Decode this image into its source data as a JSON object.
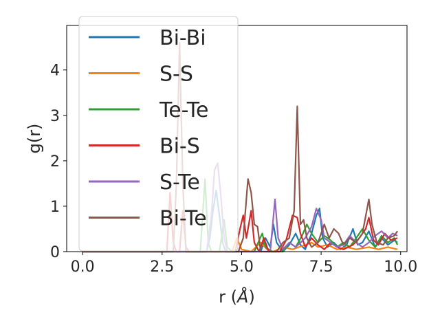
{
  "chart_data": {
    "type": "line",
    "xlabel": "r (",
    "xlabel_unit": "Å",
    "xlabel_close": ")",
    "ylabel": "g(r)",
    "xlim": [
      -0.5,
      10.2
    ],
    "ylim": [
      0,
      4.98
    ],
    "xticks": [
      0.0,
      2.5,
      5.0,
      7.5,
      10.0
    ],
    "xtick_labels": [
      "0.0",
      "2.5",
      "5.0",
      "7.5",
      "10.0"
    ],
    "yticks": [
      0,
      1,
      2,
      3,
      4
    ],
    "ytick_labels": [
      "0",
      "1",
      "2",
      "3",
      "4"
    ],
    "grid": false,
    "legend_position": "upper-left",
    "series": [
      {
        "name": "Bi-Bi",
        "color": "#1f77b4",
        "points": [
          [
            0,
            0
          ],
          [
            3.9,
            0
          ],
          [
            4.0,
            0.3
          ],
          [
            4.1,
            0.9
          ],
          [
            4.2,
            1.35
          ],
          [
            4.3,
            0.8
          ],
          [
            4.4,
            0.2
          ],
          [
            4.5,
            0
          ],
          [
            5.6,
            0
          ],
          [
            5.75,
            0.3
          ],
          [
            5.9,
            0.1
          ],
          [
            6.0,
            0.6
          ],
          [
            6.1,
            0.2
          ],
          [
            6.3,
            0
          ],
          [
            6.5,
            0.15
          ],
          [
            6.7,
            0.4
          ],
          [
            6.85,
            0.15
          ],
          [
            7.0,
            0.05
          ],
          [
            7.2,
            0.4
          ],
          [
            7.35,
            0.8
          ],
          [
            7.45,
            0.95
          ],
          [
            7.55,
            0.3
          ],
          [
            7.7,
            0.1
          ],
          [
            7.9,
            0.2
          ],
          [
            8.1,
            0.05
          ],
          [
            8.3,
            0.15
          ],
          [
            8.5,
            0.5
          ],
          [
            8.65,
            0.15
          ],
          [
            8.8,
            0.2
          ],
          [
            9.0,
            0.45
          ],
          [
            9.2,
            0.1
          ],
          [
            9.4,
            0.3
          ],
          [
            9.6,
            0.15
          ],
          [
            9.8,
            0.25
          ],
          [
            9.9,
            0.2
          ]
        ]
      },
      {
        "name": "S-S",
        "color": "#ff7f0e",
        "points": [
          [
            0,
            0
          ],
          [
            4.7,
            0
          ],
          [
            4.85,
            0.3
          ],
          [
            5.0,
            0.05
          ],
          [
            5.3,
            0
          ],
          [
            5.6,
            0.2
          ],
          [
            5.8,
            0.05
          ],
          [
            6.0,
            0
          ],
          [
            6.3,
            0.1
          ],
          [
            6.6,
            0.05
          ],
          [
            7.0,
            0.15
          ],
          [
            7.2,
            0.2
          ],
          [
            7.4,
            0.1
          ],
          [
            7.7,
            0.15
          ],
          [
            8.0,
            0.05
          ],
          [
            8.3,
            0.1
          ],
          [
            8.6,
            0.05
          ],
          [
            9.0,
            0.1
          ],
          [
            9.3,
            0.05
          ],
          [
            9.6,
            0.1
          ],
          [
            9.9,
            0.05
          ]
        ]
      },
      {
        "name": "Te-Te",
        "color": "#2ca02c",
        "points": [
          [
            0,
            0
          ],
          [
            3.7,
            0
          ],
          [
            3.85,
            1.6
          ],
          [
            3.95,
            0.2
          ],
          [
            4.05,
            0
          ],
          [
            4.3,
            0
          ],
          [
            4.45,
            0.7
          ],
          [
            4.55,
            0.1
          ],
          [
            4.7,
            0
          ],
          [
            5.4,
            0
          ],
          [
            5.55,
            0.25
          ],
          [
            5.65,
            0.4
          ],
          [
            5.75,
            0.1
          ],
          [
            5.95,
            0
          ],
          [
            6.3,
            0
          ],
          [
            6.5,
            0.2
          ],
          [
            6.7,
            0.1
          ],
          [
            6.9,
            0.35
          ],
          [
            7.05,
            0.6
          ],
          [
            7.2,
            0.4
          ],
          [
            7.4,
            0.2
          ],
          [
            7.6,
            0.35
          ],
          [
            7.8,
            0.25
          ],
          [
            8.0,
            0.1
          ],
          [
            8.2,
            0.2
          ],
          [
            8.4,
            0.1
          ],
          [
            8.6,
            0.3
          ],
          [
            8.8,
            0.5
          ],
          [
            9.0,
            0.25
          ],
          [
            9.2,
            0.1
          ],
          [
            9.4,
            0.35
          ],
          [
            9.6,
            0.2
          ],
          [
            9.8,
            0.3
          ],
          [
            9.9,
            0.15
          ]
        ]
      },
      {
        "name": "Bi-S",
        "color": "#d62728",
        "points": [
          [
            0,
            0
          ],
          [
            2.65,
            0
          ],
          [
            2.75,
            1.3
          ],
          [
            2.85,
            0.2
          ],
          [
            2.95,
            0
          ],
          [
            3.05,
            0
          ],
          [
            3.15,
            0.9
          ],
          [
            3.25,
            0.1
          ],
          [
            3.35,
            0
          ],
          [
            4.8,
            0
          ],
          [
            4.95,
            0.5
          ],
          [
            5.05,
            0.8
          ],
          [
            5.15,
            0.3
          ],
          [
            5.3,
            0.9
          ],
          [
            5.4,
            0.2
          ],
          [
            5.55,
            0
          ],
          [
            5.7,
            0.3
          ],
          [
            5.85,
            0
          ],
          [
            6.2,
            0
          ],
          [
            6.4,
            0.25
          ],
          [
            6.6,
            0.8
          ],
          [
            6.75,
            0.75
          ],
          [
            6.85,
            0.4
          ],
          [
            7.0,
            0.1
          ],
          [
            7.2,
            0.3
          ],
          [
            7.4,
            0.15
          ],
          [
            7.6,
            0.05
          ],
          [
            7.8,
            0.2
          ],
          [
            8.0,
            0.1
          ],
          [
            8.2,
            0.05
          ],
          [
            8.5,
            0.15
          ],
          [
            8.7,
            0.3
          ],
          [
            8.9,
            0.5
          ],
          [
            9.0,
            0.75
          ],
          [
            9.15,
            0.25
          ],
          [
            9.3,
            0.15
          ],
          [
            9.5,
            0.4
          ],
          [
            9.7,
            0.25
          ],
          [
            9.9,
            0.3
          ]
        ]
      },
      {
        "name": "S-Te",
        "color": "#9467bd",
        "points": [
          [
            0,
            0
          ],
          [
            3.9,
            0
          ],
          [
            4.05,
            0.8
          ],
          [
            4.15,
            1.8
          ],
          [
            4.25,
            1.95
          ],
          [
            4.35,
            1.2
          ],
          [
            4.45,
            0.3
          ],
          [
            4.55,
            0
          ],
          [
            5.9,
            0
          ],
          [
            6.05,
            1.15
          ],
          [
            6.15,
            0.3
          ],
          [
            6.3,
            0.05
          ],
          [
            6.5,
            0.2
          ],
          [
            6.7,
            0.1
          ],
          [
            7.0,
            0.3
          ],
          [
            7.2,
            0.55
          ],
          [
            7.35,
            0.95
          ],
          [
            7.5,
            0.7
          ],
          [
            7.6,
            0.3
          ],
          [
            7.8,
            0.2
          ],
          [
            8.0,
            0.1
          ],
          [
            8.2,
            0.15
          ],
          [
            8.4,
            0.35
          ],
          [
            8.6,
            0.2
          ],
          [
            8.8,
            0.1
          ],
          [
            9.0,
            0.2
          ],
          [
            9.2,
            0.35
          ],
          [
            9.4,
            0.45
          ],
          [
            9.6,
            0.3
          ],
          [
            9.75,
            0.4
          ],
          [
            9.9,
            0.35
          ]
        ]
      },
      {
        "name": "Bi-Te",
        "color": "#8c564b",
        "points": [
          [
            0,
            0
          ],
          [
            2.85,
            0
          ],
          [
            2.95,
            1.5
          ],
          [
            3.05,
            4.6
          ],
          [
            3.15,
            1.5
          ],
          [
            3.25,
            0
          ],
          [
            4.9,
            0
          ],
          [
            5.05,
            0.3
          ],
          [
            5.2,
            1.6
          ],
          [
            5.3,
            1.3
          ],
          [
            5.4,
            0.6
          ],
          [
            5.5,
            0.55
          ],
          [
            5.6,
            0
          ],
          [
            6.1,
            0
          ],
          [
            6.3,
            0.2
          ],
          [
            6.5,
            0.3
          ],
          [
            6.65,
            0.9
          ],
          [
            6.75,
            3.2
          ],
          [
            6.85,
            0.6
          ],
          [
            6.95,
            0.7
          ],
          [
            7.05,
            0.3
          ],
          [
            7.2,
            0.1
          ],
          [
            7.4,
            0.2
          ],
          [
            7.6,
            0.6
          ],
          [
            7.75,
            0.3
          ],
          [
            7.9,
            0.5
          ],
          [
            8.05,
            0.4
          ],
          [
            8.2,
            0.15
          ],
          [
            8.4,
            0.3
          ],
          [
            8.6,
            0.2
          ],
          [
            8.8,
            0.4
          ],
          [
            9.0,
            1.15
          ],
          [
            9.1,
            0.6
          ],
          [
            9.25,
            0.2
          ],
          [
            9.45,
            0.15
          ],
          [
            9.6,
            0.3
          ],
          [
            9.8,
            0.35
          ],
          [
            9.9,
            0.45
          ]
        ]
      }
    ]
  }
}
